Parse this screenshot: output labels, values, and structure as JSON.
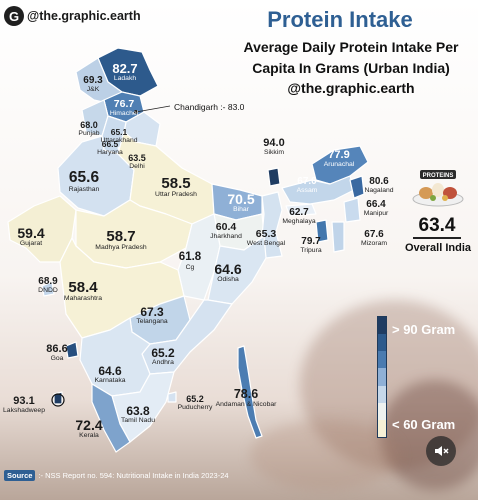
{
  "brand": {
    "handle": "@the.graphic.earth",
    "logo_letter": "G"
  },
  "header": {
    "title": "Protein Intake",
    "subtitle_line1": "Average Daily Protein Intake Per",
    "subtitle_line2": "Capita In Grams (Urban India)",
    "handle": "@the.graphic.earth"
  },
  "states": [
    {
      "name": "Ladakh",
      "value": "82.7",
      "color": "#2d5a8c"
    },
    {
      "name": "J&K",
      "value": "69.3",
      "color": "#bcd0e6"
    },
    {
      "name": "Himachel",
      "value": "76.7",
      "color": "#4f7fb3"
    },
    {
      "name": "Punjab",
      "value": "68.0",
      "color": "#c6d8ea"
    },
    {
      "name": "Uttarakhand",
      "value": "65.1",
      "color": "#d6e3f1"
    },
    {
      "name": "Haryana",
      "value": "66.5",
      "color": "#cbdcee"
    },
    {
      "name": "Delhi",
      "value": "63.5",
      "color": "#e6eef7"
    },
    {
      "name": "Rajasthan",
      "value": "65.6",
      "color": "#d3e1f0"
    },
    {
      "name": "Uttar Pradesh",
      "value": "58.5",
      "color": "#f6f1d6"
    },
    {
      "name": "Bihar",
      "value": "70.5",
      "color": "#8fb0d6"
    },
    {
      "name": "Sikkim",
      "value": "94.0",
      "color": "#1f3c62"
    },
    {
      "name": "Arunachal",
      "value": "77.9",
      "color": "#5585ba"
    },
    {
      "name": "Assam",
      "value": "67.0",
      "color": "#c2d6ea"
    },
    {
      "name": "Nagaland",
      "value": "80.6",
      "color": "#3a69a1"
    },
    {
      "name": "Manipur",
      "value": "66.4",
      "color": "#c9dbee"
    },
    {
      "name": "Meghalaya",
      "value": "62.7",
      "color": "#e8eff7"
    },
    {
      "name": "Tripura",
      "value": "79.7",
      "color": "#4377ad"
    },
    {
      "name": "Mizoram",
      "value": "67.6",
      "color": "#c0d4e9"
    },
    {
      "name": "Gujarat",
      "value": "59.4",
      "color": "#f4efd4"
    },
    {
      "name": "Madhya Pradesh",
      "value": "58.7",
      "color": "#f6f1d6"
    },
    {
      "name": "Jharkhand",
      "value": "60.4",
      "color": "#eef2f0"
    },
    {
      "name": "West Bengal",
      "value": "65.3",
      "color": "#d4e2f0"
    },
    {
      "name": "Cg",
      "value": "61.8",
      "color": "#eaf0f4"
    },
    {
      "name": "Odisha",
      "value": "64.6",
      "color": "#dae6f2"
    },
    {
      "name": "DNDD",
      "value": "68.9",
      "color": "#c3d6ea"
    },
    {
      "name": "Maharashtra",
      "value": "58.4",
      "color": "#f6f1d6"
    },
    {
      "name": "Telangana",
      "value": "67.3",
      "color": "#c1d5e9"
    },
    {
      "name": "Goa",
      "value": "86.6",
      "color": "#274f7f"
    },
    {
      "name": "Andhra",
      "value": "65.2",
      "color": "#d5e2f0"
    },
    {
      "name": "Karnataka",
      "value": "64.6",
      "color": "#dae6f2"
    },
    {
      "name": "Lakshadweep",
      "value": "93.1",
      "color": "#1f3c62"
    },
    {
      "name": "Puducherry",
      "value": "65.2",
      "color": "#d5e2f0"
    },
    {
      "name": "Tamil Nadu",
      "value": "63.8",
      "color": "#e3ecf5"
    },
    {
      "name": "Kerala",
      "value": "72.4",
      "color": "#7ea3cc"
    },
    {
      "name": "Andaman & Nicobar",
      "value": "78.6",
      "color": "#4c7db2"
    }
  ],
  "callout": {
    "text": "Chandigarh :- 83.0"
  },
  "overall": {
    "value": "63.4",
    "label": "Overall India",
    "plate_label": "PROTEINS"
  },
  "legend": {
    "high_label": "> 90 Gram",
    "low_label": "< 60 Gram",
    "colors": [
      "#1f3c62",
      "#2d5a8c",
      "#4a7bb0",
      "#8fb0d6",
      "#c6d8ea",
      "#eef2f0",
      "#f6f1d6"
    ]
  },
  "source": {
    "tag": "Source",
    "text": ":- NSS Report no. 594: Nutritional Intake in India 2023-24"
  }
}
